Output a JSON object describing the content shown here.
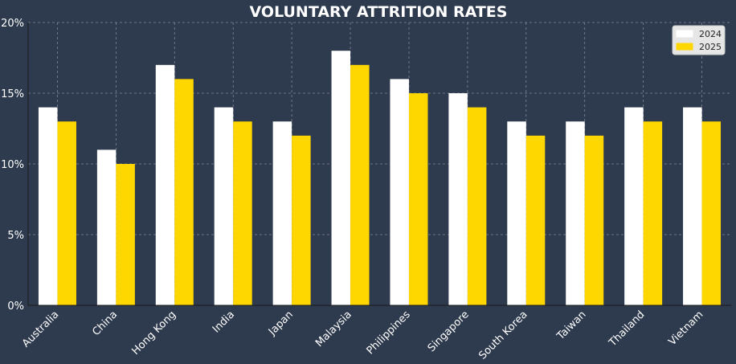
{
  "chart_data": {
    "type": "bar",
    "title": "VOLUNTARY ATTRITION RATES",
    "xlabel": "",
    "ylabel": "",
    "categories": [
      "Australia",
      "China",
      "Hong Kong",
      "India",
      "Japan",
      "Malaysia",
      "Philippines",
      "Singapore",
      "South Korea",
      "Taiwan",
      "Thailand",
      "Vietnam"
    ],
    "series": [
      {
        "name": "2024",
        "color": "#ffffff",
        "values": [
          14,
          11,
          17,
          14,
          13,
          18,
          16,
          15,
          13,
          13,
          14,
          14
        ]
      },
      {
        "name": "2025",
        "color": "#ffd700",
        "values": [
          13,
          10,
          16,
          13,
          12,
          17,
          15,
          14,
          12,
          12,
          13,
          13
        ]
      }
    ],
    "ylim": [
      0,
      20
    ],
    "yticks": [
      0,
      5,
      10,
      15,
      20
    ],
    "ytick_labels": [
      "0%",
      "5%",
      "10%",
      "15%",
      "20%"
    ],
    "grid": true,
    "legend_position": "top-right",
    "background": "#2e3a4d"
  }
}
